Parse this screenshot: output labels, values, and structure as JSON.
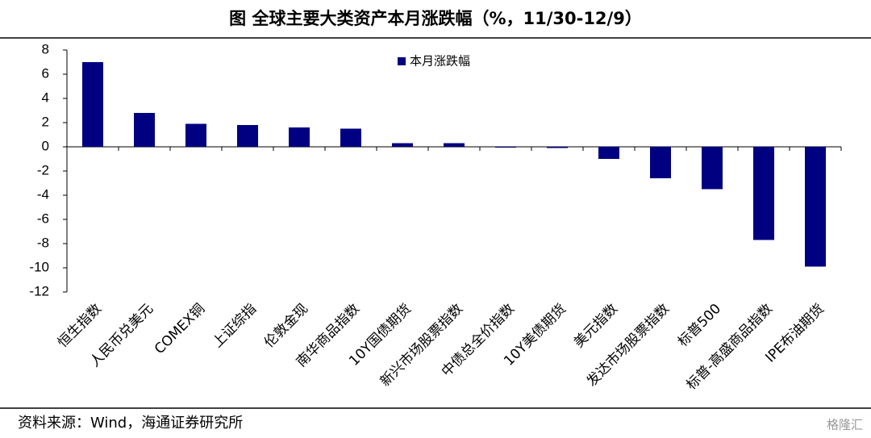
{
  "chart_data": {
    "type": "bar",
    "title": "图  全球主要大类资产本月涨跌幅（%，11/30-12/9）",
    "source": "资料来源：Wind，海通证券研究所",
    "watermark": "格隆汇",
    "categories": [
      "恒生指数",
      "人民币兑美元",
      "COMEX铜",
      "上证综指",
      "伦敦金现",
      "南华商品指数",
      "10Y国债期货",
      "新兴市场股票指数",
      "中债总全价指数",
      "10Y美债期货",
      "美元指数",
      "发达市场股票指数",
      "标普500",
      "标普-高盛商品指数",
      "IPE布油期货"
    ],
    "series": [
      {
        "name": "本月涨跌幅",
        "color": "#000080",
        "values": [
          7.0,
          2.8,
          1.9,
          1.8,
          1.6,
          1.5,
          0.3,
          0.3,
          -0.05,
          -0.1,
          -1.0,
          -2.6,
          -3.5,
          -7.7,
          -9.9
        ]
      }
    ],
    "ylim": [
      -12,
      8
    ],
    "yticks": [
      -12,
      -10,
      -8,
      -6,
      -4,
      -2,
      0,
      2,
      4,
      6,
      8
    ],
    "legend": "top-center"
  }
}
